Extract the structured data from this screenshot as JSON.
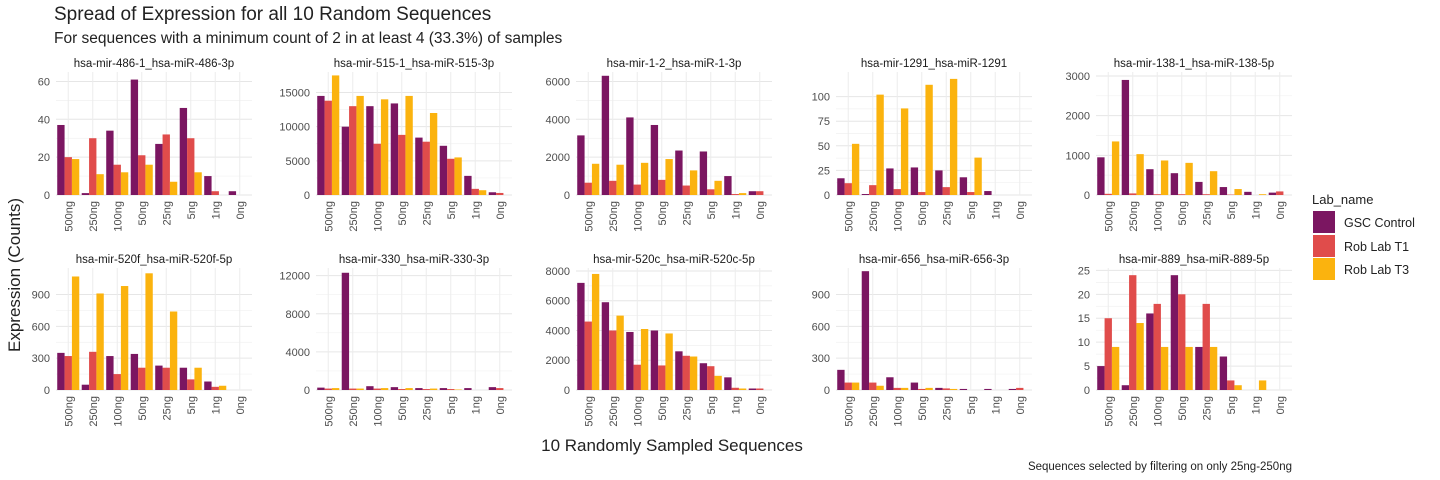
{
  "figure": {
    "title": "Spread of Expression for all 10 Random Sequences",
    "subtitle": "For sequences with a minimum count of 2 in at least 4 (33.3%) of samples",
    "ylabel": "Expression (Counts)",
    "xlabel": "10 Randomly Sampled Sequences",
    "caption": "Sequences selected by filtering on only 25ng-250ng"
  },
  "legend": {
    "title": "Lab_name",
    "entries": [
      {
        "name": "GSC Control",
        "color": "#7b1661"
      },
      {
        "name": "Rob Lab T1",
        "color": "#e04c4b"
      },
      {
        "name": "Rob Lab T3",
        "color": "#fbb30e"
      }
    ]
  },
  "chart_data": [
    {
      "type": "bar",
      "title": "hsa-mir-486-1_hsa-miR-486-3p",
      "categories": [
        "500ng",
        "250ng",
        "100ng",
        "50ng",
        "25ng",
        "5ng",
        "1ng",
        "0ng"
      ],
      "ylim": [
        0,
        65
      ],
      "yticks": [
        0,
        20,
        40,
        60
      ],
      "ytick_labels": [
        "0",
        "20",
        "40",
        "60"
      ],
      "series": [
        {
          "name": "GSC Control",
          "values": [
            37,
            1,
            34,
            61,
            27,
            46,
            10,
            2
          ]
        },
        {
          "name": "Rob Lab T1",
          "values": [
            20,
            30,
            16,
            21,
            32,
            30,
            2,
            0
          ]
        },
        {
          "name": "Rob Lab T3",
          "values": [
            19,
            11,
            12,
            16,
            7,
            12,
            0,
            0
          ]
        }
      ]
    },
    {
      "type": "bar",
      "title": "hsa-mir-515-1_hsa-miR-515-3p",
      "categories": [
        "500ng",
        "250ng",
        "100ng",
        "50ng",
        "25ng",
        "5ng",
        "1ng",
        "0ng"
      ],
      "ylim": [
        0,
        18000
      ],
      "yticks": [
        0,
        5000,
        10000,
        15000
      ],
      "ytick_labels": [
        "0",
        "5000",
        "10000",
        "15000"
      ],
      "series": [
        {
          "name": "GSC Control",
          "values": [
            14500,
            10000,
            13000,
            13400,
            8400,
            7200,
            2800,
            400
          ]
        },
        {
          "name": "Rob Lab T1",
          "values": [
            13800,
            13000,
            7500,
            8800,
            7800,
            5300,
            900,
            300
          ]
        },
        {
          "name": "Rob Lab T3",
          "values": [
            17500,
            14500,
            14000,
            14500,
            12000,
            5500,
            700,
            0
          ]
        }
      ]
    },
    {
      "type": "bar",
      "title": "hsa-mir-1-2_hsa-miR-1-3p",
      "categories": [
        "500ng",
        "250ng",
        "100ng",
        "50ng",
        "25ng",
        "5ng",
        "1ng",
        "0ng"
      ],
      "ylim": [
        0,
        6500
      ],
      "yticks": [
        0,
        2000,
        4000,
        6000
      ],
      "ytick_labels": [
        "0",
        "2000",
        "4000",
        "6000"
      ],
      "series": [
        {
          "name": "GSC Control",
          "values": [
            3150,
            6300,
            4100,
            3700,
            2350,
            2300,
            1000,
            200
          ]
        },
        {
          "name": "Rob Lab T1",
          "values": [
            650,
            750,
            550,
            800,
            500,
            300,
            50,
            200
          ]
        },
        {
          "name": "Rob Lab T3",
          "values": [
            1650,
            1600,
            1700,
            1900,
            1300,
            750,
            100,
            0
          ]
        }
      ]
    },
    {
      "type": "bar",
      "title": "hsa-mir-1291_hsa-miR-1291",
      "categories": [
        "500ng",
        "250ng",
        "100ng",
        "50ng",
        "25ng",
        "5ng",
        "1ng",
        "0ng"
      ],
      "ylim": [
        0,
        125
      ],
      "yticks": [
        0,
        25,
        50,
        75,
        100
      ],
      "ytick_labels": [
        "0",
        "25",
        "50",
        "75",
        "100"
      ],
      "series": [
        {
          "name": "GSC Control",
          "values": [
            17,
            1,
            27,
            28,
            25,
            18,
            4,
            0
          ]
        },
        {
          "name": "Rob Lab T1",
          "values": [
            12,
            10,
            6,
            3,
            8,
            3,
            0,
            0
          ]
        },
        {
          "name": "Rob Lab T3",
          "values": [
            52,
            102,
            88,
            112,
            118,
            38,
            0,
            0
          ]
        }
      ]
    },
    {
      "type": "bar",
      "title": "hsa-mir-138-1_hsa-miR-138-5p",
      "categories": [
        "500ng",
        "250ng",
        "100ng",
        "50ng",
        "25ng",
        "5ng",
        "1ng",
        "0ng"
      ],
      "ylim": [
        0,
        3100
      ],
      "yticks": [
        0,
        1000,
        2000,
        3000
      ],
      "ytick_labels": [
        "0",
        "1000",
        "2000",
        "3000"
      ],
      "series": [
        {
          "name": "GSC Control",
          "values": [
            950,
            2900,
            650,
            550,
            330,
            200,
            80,
            60
          ]
        },
        {
          "name": "Rob Lab T1",
          "values": [
            30,
            40,
            20,
            20,
            20,
            10,
            0,
            90
          ]
        },
        {
          "name": "Rob Lab T3",
          "values": [
            1350,
            1030,
            870,
            810,
            600,
            150,
            20,
            0
          ]
        }
      ]
    },
    {
      "type": "bar",
      "title": "hsa-mir-520f_hsa-miR-520f-5p",
      "categories": [
        "500ng",
        "250ng",
        "100ng",
        "50ng",
        "25ng",
        "5ng",
        "1ng",
        "0ng"
      ],
      "ylim": [
        0,
        1150
      ],
      "yticks": [
        0,
        300,
        600,
        900
      ],
      "ytick_labels": [
        "0",
        "300",
        "600",
        "900"
      ],
      "series": [
        {
          "name": "GSC Control",
          "values": [
            350,
            50,
            320,
            340,
            230,
            210,
            80,
            0
          ]
        },
        {
          "name": "Rob Lab T1",
          "values": [
            320,
            360,
            150,
            210,
            210,
            100,
            30,
            0
          ]
        },
        {
          "name": "Rob Lab T3",
          "values": [
            1070,
            910,
            980,
            1100,
            740,
            210,
            40,
            0
          ]
        }
      ]
    },
    {
      "type": "bar",
      "title": "hsa-mir-330_hsa-miR-330-3p",
      "categories": [
        "500ng",
        "250ng",
        "100ng",
        "50ng",
        "25ng",
        "5ng",
        "1ng",
        "0ng"
      ],
      "ylim": [
        0,
        12800
      ],
      "yticks": [
        0,
        4000,
        8000,
        12000
      ],
      "ytick_labels": [
        "0",
        "4000",
        "8000",
        "12000"
      ],
      "series": [
        {
          "name": "GSC Control",
          "values": [
            250,
            12300,
            400,
            300,
            200,
            200,
            200,
            300
          ]
        },
        {
          "name": "Rob Lab T1",
          "values": [
            150,
            150,
            150,
            100,
            100,
            100,
            0,
            200
          ]
        },
        {
          "name": "Rob Lab T3",
          "values": [
            200,
            150,
            200,
            200,
            150,
            50,
            0,
            0
          ]
        }
      ]
    },
    {
      "type": "bar",
      "title": "hsa-mir-520c_hsa-miR-520c-5p",
      "categories": [
        "500ng",
        "250ng",
        "100ng",
        "50ng",
        "25ng",
        "5ng",
        "1ng",
        "0ng"
      ],
      "ylim": [
        0,
        8200
      ],
      "yticks": [
        0,
        2000,
        4000,
        6000,
        8000
      ],
      "ytick_labels": [
        "0",
        "2000",
        "4000",
        "6000",
        "8000"
      ],
      "series": [
        {
          "name": "GSC Control",
          "values": [
            7200,
            5900,
            3900,
            4000,
            2600,
            1800,
            850,
            100
          ]
        },
        {
          "name": "Rob Lab T1",
          "values": [
            4600,
            4000,
            1700,
            1650,
            2300,
            1600,
            150,
            100
          ]
        },
        {
          "name": "Rob Lab T3",
          "values": [
            7800,
            5000,
            4100,
            3800,
            2250,
            950,
            100,
            0
          ]
        }
      ]
    },
    {
      "type": "bar",
      "title": "hsa-mir-656_hsa-miR-656-3p",
      "categories": [
        "500ng",
        "250ng",
        "100ng",
        "50ng",
        "25ng",
        "5ng",
        "1ng",
        "0ng"
      ],
      "ylim": [
        0,
        1150
      ],
      "yticks": [
        0,
        300,
        600,
        900
      ],
      "ytick_labels": [
        "0",
        "300",
        "600",
        "900"
      ],
      "series": [
        {
          "name": "GSC Control",
          "values": [
            190,
            1120,
            120,
            70,
            20,
            10,
            10,
            10
          ]
        },
        {
          "name": "Rob Lab T1",
          "values": [
            70,
            70,
            20,
            10,
            15,
            0,
            0,
            20
          ]
        },
        {
          "name": "Rob Lab T3",
          "values": [
            70,
            40,
            20,
            20,
            10,
            0,
            0,
            0
          ]
        }
      ]
    },
    {
      "type": "bar",
      "title": "hsa-mir-889_hsa-miR-889-5p",
      "categories": [
        "500ng",
        "250ng",
        "100ng",
        "50ng",
        "25ng",
        "5ng",
        "1ng",
        "0ng"
      ],
      "ylim": [
        0,
        25.5
      ],
      "yticks": [
        0,
        5,
        10,
        15,
        20,
        25
      ],
      "ytick_labels": [
        "0",
        "5",
        "10",
        "15",
        "20",
        "25"
      ],
      "series": [
        {
          "name": "GSC Control",
          "values": [
            5,
            1,
            16,
            24,
            9,
            7,
            0,
            0
          ]
        },
        {
          "name": "Rob Lab T1",
          "values": [
            15,
            24,
            18,
            20,
            18,
            2,
            0,
            0
          ]
        },
        {
          "name": "Rob Lab T3",
          "values": [
            9,
            14,
            9,
            9,
            9,
            1,
            2,
            0
          ]
        }
      ]
    }
  ]
}
